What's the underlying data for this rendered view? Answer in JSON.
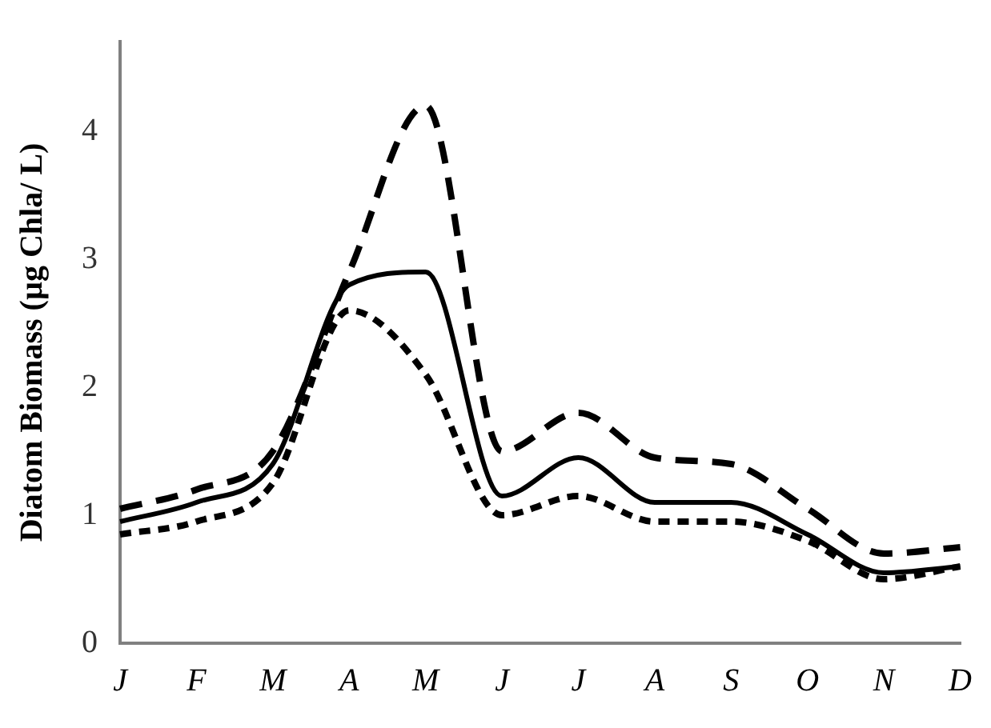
{
  "chart_data": {
    "type": "line",
    "ylabel": "Diatom Biomass (µg Chla/ L)",
    "categories": [
      "J",
      "F",
      "M",
      "A",
      "M",
      "J",
      "J",
      "A",
      "S",
      "O",
      "N",
      "D"
    ],
    "series": [
      {
        "color": "#000000",
        "line_style": "dashed",
        "values": [
          1.05,
          1.2,
          1.5,
          2.9,
          4.2,
          1.5,
          1.8,
          1.45,
          1.4,
          1.05,
          0.7,
          0.75
        ]
      },
      {
        "color": "#000000",
        "line_style": "solid",
        "values": [
          0.95,
          1.1,
          1.4,
          2.8,
          2.9,
          1.15,
          1.45,
          1.1,
          1.1,
          0.85,
          0.55,
          0.6
        ]
      },
      {
        "color": "#000000",
        "line_style": "dotted",
        "values": [
          0.85,
          0.95,
          1.25,
          2.6,
          2.1,
          1.0,
          1.15,
          0.95,
          0.95,
          0.8,
          0.5,
          0.6
        ]
      }
    ],
    "ylim": [
      0,
      4.7
    ],
    "yticks": [
      0,
      1,
      2,
      3,
      4
    ],
    "grid": false,
    "legend": false,
    "marker": "none"
  }
}
